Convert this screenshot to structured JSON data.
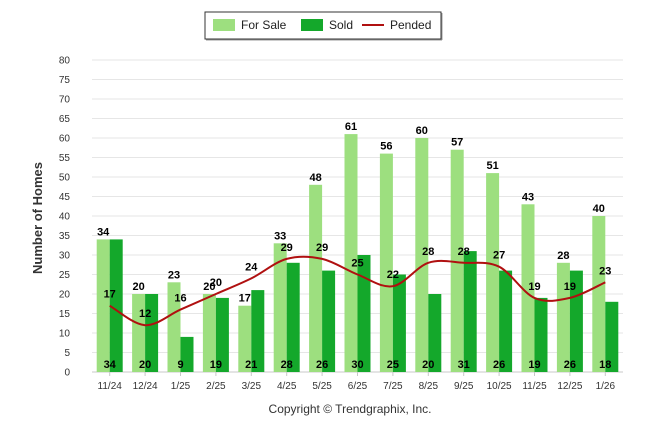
{
  "chart_data": {
    "type": "bar",
    "title": "",
    "xlabel": "",
    "ylabel": "Number of Homes",
    "ylim": [
      0,
      80
    ],
    "ytick_step": 5,
    "categories": [
      "11/24",
      "12/24",
      "1/25",
      "2/25",
      "3/25",
      "4/25",
      "5/25",
      "6/25",
      "7/25",
      "8/25",
      "9/25",
      "10/25",
      "11/25",
      "12/25",
      "1/26"
    ],
    "series": [
      {
        "name": "For Sale",
        "type": "bar",
        "color": "#9ddf7f",
        "values": [
          34,
          20,
          23,
          20,
          17,
          33,
          48,
          61,
          56,
          60,
          57,
          51,
          43,
          28,
          40
        ]
      },
      {
        "name": "Sold",
        "type": "bar",
        "color": "#14a82b",
        "values": [
          34,
          20,
          9,
          19,
          21,
          28,
          26,
          30,
          25,
          20,
          31,
          26,
          19,
          26,
          18
        ]
      },
      {
        "name": "Pended",
        "type": "line",
        "color": "#b01010",
        "values": [
          17,
          12,
          16,
          20,
          24,
          29,
          29,
          25,
          22,
          28,
          28,
          27,
          19,
          19,
          23
        ]
      }
    ],
    "legend": {
      "position": "top-center",
      "entries": [
        "For Sale",
        "Sold",
        "Pended"
      ]
    },
    "grid": true,
    "footer": "Copyright © Trendgraphix, Inc."
  }
}
